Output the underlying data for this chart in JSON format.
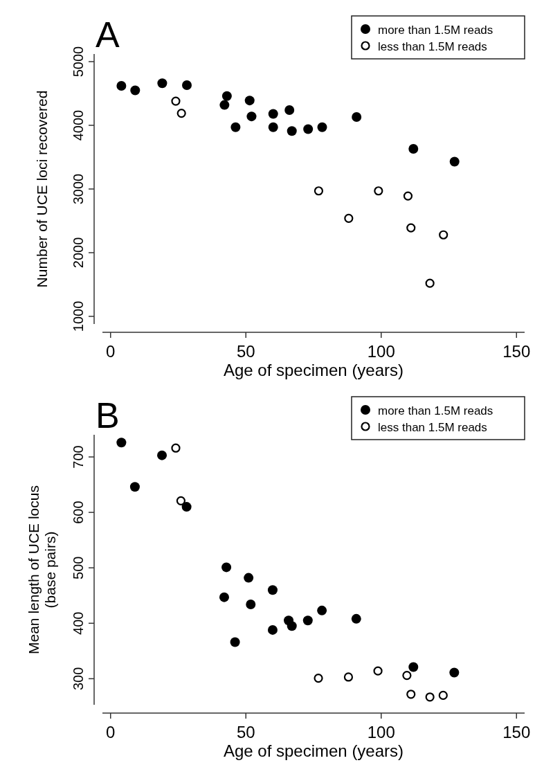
{
  "chart_data": [
    {
      "type": "scatter",
      "title": "A",
      "xlabel": "Age of specimen (years)",
      "ylabel": "Number of UCE loci recovered",
      "xlim": [
        -3,
        153
      ],
      "xticks": [
        0,
        50,
        100,
        150
      ],
      "ylim": [
        880,
        5120
      ],
      "yticks": [
        1000,
        2000,
        3000,
        4000,
        5000
      ],
      "legend": "top right",
      "grid": false,
      "series": [
        {
          "name": "more than 1.5M reads",
          "color": "#000000",
          "marker": "circle",
          "x": [
            4.0,
            9.1,
            19.1,
            28.2,
            42.1,
            43.0,
            46.2,
            51.4,
            52.1,
            60.1,
            60.1,
            66.1,
            67.0,
            73.0,
            78.2,
            90.9,
            111.9,
            127.1
          ],
          "values": [
            4620,
            4550,
            4660,
            4630,
            4320,
            4460,
            3970,
            4390,
            4140,
            4180,
            3970,
            4240,
            3910,
            3940,
            3970,
            4130,
            3630,
            3430
          ]
        },
        {
          "name": "less than 1.5M reads",
          "color": "#000000",
          "marker": "open-circle",
          "x": [
            24.1,
            26.2,
            76.9,
            88.0,
            99.0,
            109.9,
            111.0,
            118.0,
            123.0
          ],
          "values": [
            4380,
            4190,
            2970,
            2540,
            2970,
            2890,
            2390,
            1520,
            2280
          ]
        }
      ]
    },
    {
      "type": "scatter",
      "title": "B",
      "xlabel": "Age of specimen (years)",
      "ylabel": "Mean length of UCE locus\n(base pairs)",
      "xlim": [
        -3,
        153
      ],
      "xticks": [
        0,
        50,
        100,
        150
      ],
      "ylim": [
        253,
        740
      ],
      "yticks": [
        300,
        400,
        500,
        600,
        700
      ],
      "legend": "top right",
      "grid": false,
      "series": [
        {
          "name": "more than 1.5M reads",
          "color": "#000000",
          "marker": "circle",
          "x": [
            4.0,
            9.0,
            19.0,
            28.1,
            42.0,
            42.8,
            46.0,
            51.0,
            51.8,
            59.9,
            59.9,
            65.8,
            67.0,
            72.9,
            78.1,
            90.8,
            111.9,
            127.0
          ],
          "values": [
            726,
            646,
            703,
            610,
            447,
            501,
            366,
            482,
            434,
            460,
            388,
            405,
            395,
            405,
            423,
            408,
            321,
            311
          ]
        },
        {
          "name": "less than 1.5M reads",
          "color": "#000000",
          "marker": "open-circle",
          "x": [
            24.1,
            26.0,
            76.8,
            87.9,
            98.8,
            109.5,
            111.0,
            118.0,
            122.9
          ],
          "values": [
            716,
            621,
            301,
            303,
            314,
            306,
            272,
            267,
            270
          ]
        }
      ]
    }
  ]
}
